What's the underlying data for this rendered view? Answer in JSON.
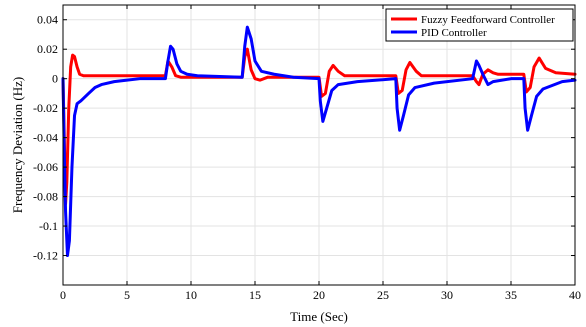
{
  "chart_data": {
    "type": "line",
    "title": "",
    "xlabel": "Time (Sec)",
    "ylabel": "Frequency Deviation (Hz)",
    "xlim": [
      0,
      40
    ],
    "ylim": [
      -0.14,
      0.05
    ],
    "xticks": [
      0,
      5,
      10,
      15,
      20,
      25,
      30,
      35,
      40
    ],
    "yticks": [
      -0.12,
      -0.1,
      -0.08,
      -0.06,
      -0.04,
      -0.02,
      0,
      0.02,
      0.04
    ],
    "xtick_labels": [
      "0",
      "5",
      "10",
      "15",
      "20",
      "25",
      "30",
      "35",
      "40"
    ],
    "ytick_labels": [
      "-0.12",
      "-0.1",
      "-0.08",
      "-0.06",
      "-0.04",
      "-0.02",
      "0",
      "0.02",
      "0.04"
    ],
    "grid": true,
    "legend_position": "top-right",
    "series": [
      {
        "name": "Fuzzy Feedforward Controller",
        "color": "#ff0000",
        "x": [
          0,
          0.1,
          0.2,
          0.3,
          0.45,
          0.6,
          0.75,
          0.9,
          1.1,
          1.3,
          1.6,
          2.0,
          2.5,
          4,
          8.0,
          8.2,
          8.5,
          8.8,
          9.2,
          10,
          14.0,
          14.2,
          14.4,
          14.7,
          15.0,
          15.4,
          16.0,
          20.0,
          20.2,
          20.5,
          20.8,
          21.1,
          21.5,
          22.0,
          26.0,
          26.2,
          26.5,
          26.8,
          27.1,
          27.6,
          28.0,
          32.0,
          32.3,
          32.5,
          32.8,
          33.2,
          33.6,
          34,
          36.0,
          36.2,
          36.5,
          36.8,
          37.2,
          37.7,
          38.5,
          40
        ],
        "y": [
          0.0,
          -0.04,
          -0.085,
          -0.07,
          -0.02,
          0.008,
          0.016,
          0.015,
          0.008,
          0.003,
          0.002,
          0.002,
          0.002,
          0.002,
          0.002,
          0.012,
          0.008,
          0.002,
          0.001,
          0.001,
          0.001,
          0.015,
          0.02,
          0.006,
          0.0,
          -0.001,
          0.001,
          0.001,
          -0.012,
          -0.01,
          0.005,
          0.009,
          0.005,
          0.002,
          0.002,
          -0.01,
          -0.008,
          0.006,
          0.011,
          0.005,
          0.002,
          0.002,
          -0.002,
          -0.004,
          0.003,
          0.006,
          0.004,
          0.003,
          0.003,
          -0.009,
          -0.006,
          0.008,
          0.014,
          0.007,
          0.004,
          0.003
        ]
      },
      {
        "name": "PID Controller",
        "color": "#0000ff",
        "x": [
          0,
          0.1,
          0.2,
          0.35,
          0.5,
          0.7,
          0.9,
          1.1,
          1.4,
          2.0,
          2.5,
          3,
          4,
          5,
          6,
          8.0,
          8.2,
          8.4,
          8.6,
          8.9,
          9.2,
          9.7,
          10.5,
          14.0,
          14.2,
          14.4,
          14.7,
          15.0,
          15.5,
          16.5,
          18,
          20.0,
          20.1,
          20.3,
          20.6,
          21.0,
          21.5,
          23,
          26.0,
          26.1,
          26.3,
          26.6,
          27.0,
          27.5,
          29,
          32.0,
          32.3,
          32.5,
          32.8,
          33.2,
          33.6,
          35,
          36.0,
          36.1,
          36.3,
          36.6,
          37.0,
          37.5,
          39,
          40
        ],
        "y": [
          0.0,
          -0.05,
          -0.09,
          -0.12,
          -0.11,
          -0.06,
          -0.025,
          -0.017,
          -0.015,
          -0.01,
          -0.006,
          -0.004,
          -0.002,
          -0.001,
          0.0,
          0.0,
          0.012,
          0.022,
          0.02,
          0.01,
          0.005,
          0.003,
          0.002,
          0.001,
          0.022,
          0.035,
          0.027,
          0.012,
          0.005,
          0.003,
          0.001,
          0.0,
          -0.015,
          -0.029,
          -0.02,
          -0.008,
          -0.004,
          -0.002,
          0.0,
          -0.02,
          -0.035,
          -0.025,
          -0.011,
          -0.006,
          -0.003,
          0.0,
          0.012,
          0.009,
          0.003,
          -0.004,
          -0.002,
          0.0,
          0.0,
          -0.02,
          -0.035,
          -0.025,
          -0.012,
          -0.007,
          -0.002,
          -0.001
        ]
      }
    ]
  }
}
